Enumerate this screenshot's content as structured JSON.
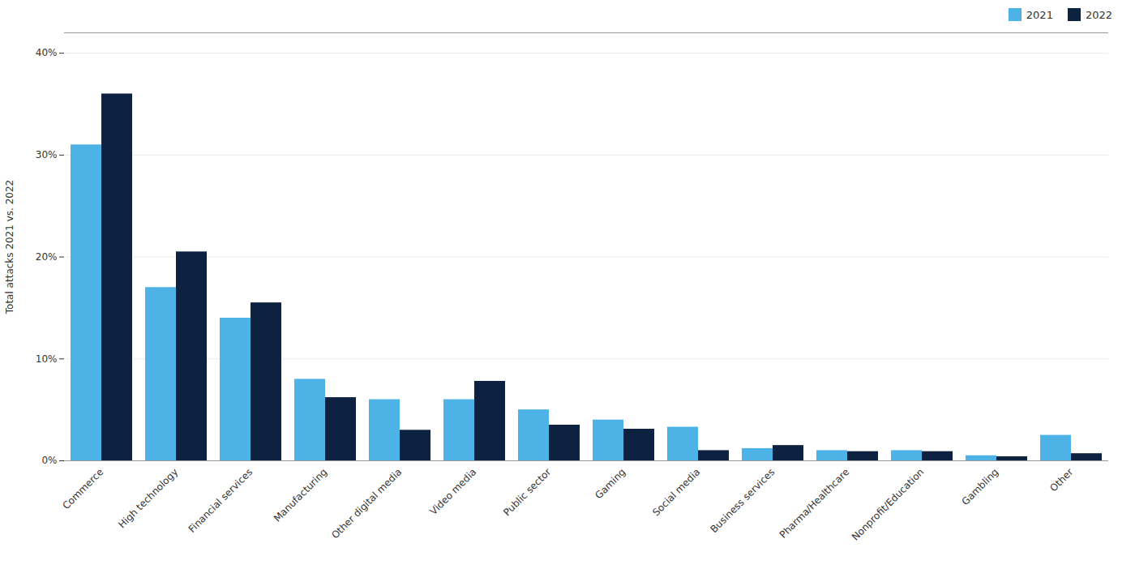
{
  "chart_data": {
    "type": "bar",
    "categories": [
      "Commerce",
      "High technology",
      "Financial services",
      "Manufacturing",
      "Other digital media",
      "Video media",
      "Public sector",
      "Gaming",
      "Social media",
      "Business services",
      "Pharma/Healthcare",
      "Nonprofit/Education",
      "Gambling",
      "Other"
    ],
    "series": [
      {
        "name": "2021",
        "color": "#4db3e6",
        "values": [
          31,
          17,
          14,
          8,
          6,
          6,
          5,
          4,
          3.3,
          1.2,
          1.0,
          1.0,
          0.5,
          2.5
        ]
      },
      {
        "name": "2022",
        "color": "#0d2240",
        "values": [
          36,
          20.5,
          15.5,
          6.2,
          3.0,
          7.8,
          3.5,
          3.1,
          1.0,
          1.5,
          0.9,
          0.9,
          0.4,
          0.7
        ]
      }
    ],
    "ylabel": "Total attacks 2021 vs. 2022",
    "ylim": [
      0,
      42
    ],
    "yticks": [
      {
        "value": 0,
        "label": "0%"
      },
      {
        "value": 10,
        "label": "10%"
      },
      {
        "value": 20,
        "label": "20%"
      },
      {
        "value": 30,
        "label": "30%"
      },
      {
        "value": 40,
        "label": "40%"
      }
    ],
    "grid": true,
    "legend": "upper right"
  }
}
